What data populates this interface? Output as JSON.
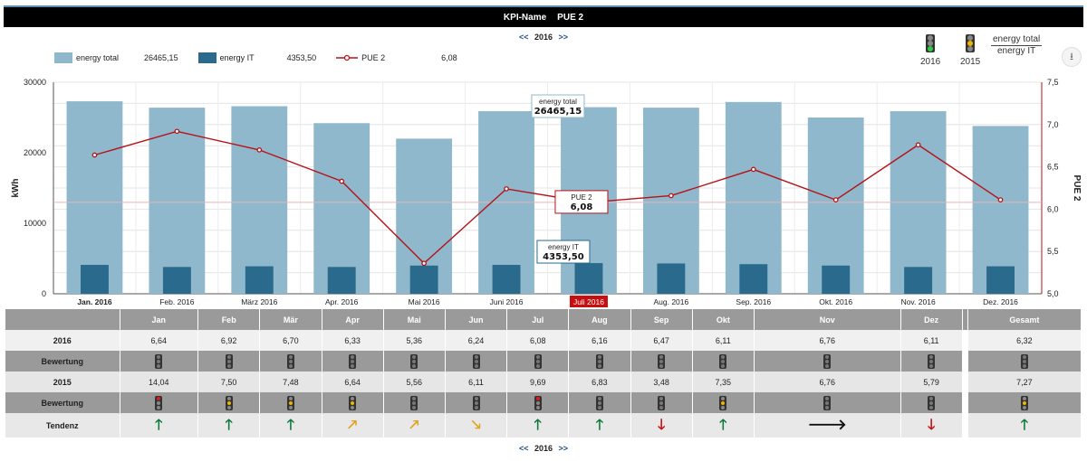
{
  "header": {
    "kpi_label": "KPI-Name",
    "kpi_value": "PUE 2"
  },
  "nav": {
    "prev": "<<",
    "year": "2016",
    "next": ">>"
  },
  "legend": {
    "energy_total": {
      "label": "energy total",
      "value": "26465,15",
      "color": "#90b8cc"
    },
    "energy_it": {
      "label": "energy IT",
      "value": "4353,50",
      "color": "#2a6a8c"
    },
    "pue": {
      "label": "PUE 2",
      "value": "6,08",
      "color": "#b51218"
    }
  },
  "top_lights": [
    {
      "label": "2016",
      "state": "green"
    },
    {
      "label": "2015",
      "state": "yellow"
    }
  ],
  "ratio": {
    "numerator": "energy total",
    "denominator": "energy IT"
  },
  "download": {
    "icon": "download-icon"
  },
  "chart_data": {
    "type": "bar",
    "categories": [
      "Jan. 2016",
      "Feb. 2016",
      "März 2016",
      "Apr. 2016",
      "Mai 2016",
      "Juni 2016",
      "Juli 2016",
      "Aug. 2016",
      "Sep. 2016",
      "Okt. 2016",
      "Nov. 2016",
      "Dez. 2016"
    ],
    "series": [
      {
        "name": "energy total",
        "type": "bar",
        "axis": "left",
        "values": [
          27300,
          26400,
          26600,
          24200,
          22000,
          25900,
          26465.15,
          26400,
          27200,
          25000,
          25900,
          23800
        ]
      },
      {
        "name": "energy IT",
        "type": "bar",
        "axis": "left",
        "values": [
          4100,
          3800,
          3900,
          3800,
          4000,
          4100,
          4353.5,
          4300,
          4200,
          4000,
          3800,
          3900
        ]
      },
      {
        "name": "PUE 2",
        "type": "line",
        "axis": "right",
        "values": [
          6.64,
          6.92,
          6.7,
          6.33,
          5.36,
          6.24,
          6.08,
          6.16,
          6.47,
          6.11,
          6.76,
          6.11
        ]
      }
    ],
    "ylabel": "kWh",
    "ylabel_right": "PUE 2",
    "ylim": [
      0,
      30000
    ],
    "ylim_right": [
      5.0,
      7.5
    ],
    "yticks": [
      "0",
      "10000",
      "20000",
      "30000"
    ],
    "yticks_right": [
      "5,0",
      "5,5",
      "6,0",
      "6,5",
      "7,0",
      "7,5"
    ],
    "selected_category": "Juli 2016",
    "tooltips": {
      "energy_total": {
        "label": "energy total",
        "value": "26465,15"
      },
      "pue": {
        "label": "PUE 2",
        "value": "6,08"
      },
      "energy_it": {
        "label": "energy IT",
        "value": "4353,50"
      }
    },
    "grid": true
  },
  "table": {
    "headers": [
      "Jan",
      "Feb",
      "Mär",
      "Apr",
      "Mai",
      "Jun",
      "Jul",
      "Aug",
      "Sep",
      "Okt",
      "Nov",
      "Dez",
      "Gesamt"
    ],
    "row_2016": {
      "label": "2016",
      "values": [
        "6,64",
        "6,92",
        "6,70",
        "6,33",
        "5,36",
        "6,24",
        "6,08",
        "6,16",
        "6,47",
        "6,11",
        "6,76",
        "6,11",
        "6,32"
      ]
    },
    "row_bew_2016": {
      "label": "Bewertung",
      "states": [
        "gray",
        "gray",
        "gray",
        "gray",
        "gray",
        "gray",
        "gray",
        "gray",
        "gray",
        "gray",
        "gray",
        "gray",
        "gray"
      ]
    },
    "row_2015": {
      "label": "2015",
      "values": [
        "14,04",
        "7,50",
        "7,48",
        "6,64",
        "5,56",
        "6,11",
        "9,69",
        "6,83",
        "3,48",
        "7,35",
        "6,76",
        "5,79",
        "7,27"
      ]
    },
    "row_bew_2015": {
      "label": "Bewertung",
      "states": [
        "red",
        "yellow",
        "yellow",
        "yellow",
        "gray",
        "gray",
        "red",
        "gray",
        "gray",
        "yellow",
        "gray",
        "gray",
        "yellow"
      ]
    },
    "row_tendenz": {
      "label": "Tendenz",
      "arrows": [
        "up",
        "up",
        "up",
        "diag-up",
        "diag-up",
        "diag-down",
        "up",
        "up",
        "down",
        "up",
        "right",
        "down",
        "up"
      ]
    }
  },
  "arrow_glyphs": {
    "up": "🡑",
    "diag-up": "🡕",
    "diag-down": "🡖",
    "down": "🡓",
    "right": "🡒"
  }
}
